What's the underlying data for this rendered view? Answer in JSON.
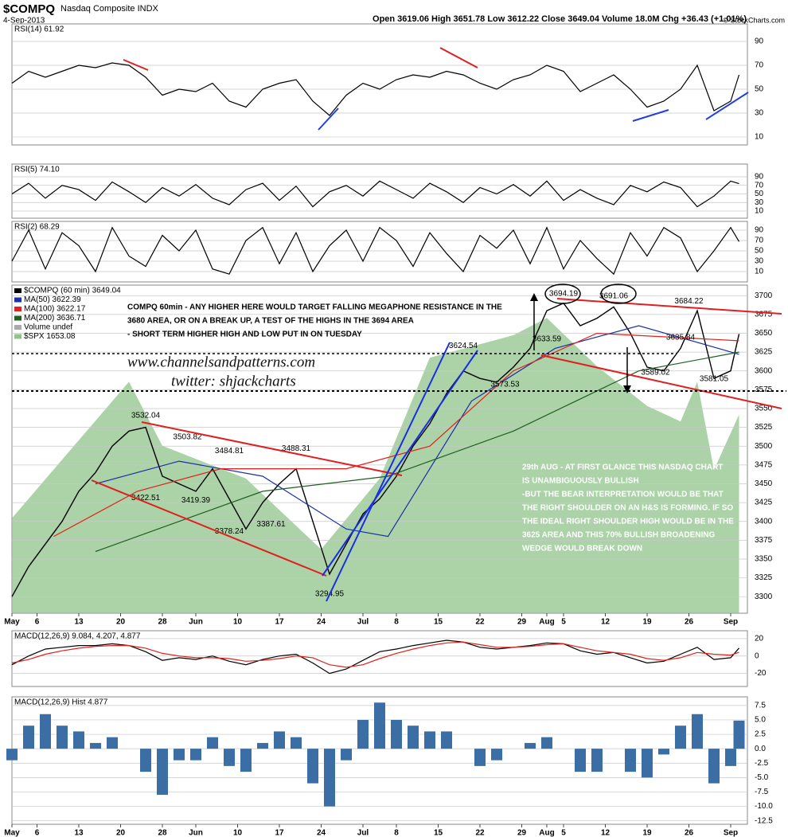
{
  "header": {
    "symbol": "$COMPQ",
    "name": "Nasdaq Composite INDX",
    "date": "4-Sep-2013",
    "quote": "Open 3619.06  High 3651.78  Low 3612.22  Close 3649.04  Volume 18.0M  Chg +36.43 (+1.01%)",
    "credit": "© StockCharts.com"
  },
  "watermark": [
    "www.channelsandpatterns.com",
    "twitter: shjackcharts"
  ],
  "chart_data": [
    {
      "type": "line",
      "x": [
        0,
        2,
        4,
        6,
        8,
        10,
        12,
        14,
        16,
        18,
        20,
        22,
        24,
        26,
        28,
        30,
        32,
        34,
        36,
        38,
        40,
        42,
        44,
        46,
        48,
        50,
        52,
        54,
        56,
        58,
        60,
        62,
        64,
        66,
        68,
        70,
        72,
        74,
        76,
        78,
        80,
        82,
        84,
        86,
        87
      ],
      "xlim": [
        0,
        88
      ],
      "ylim": [
        3278,
        3714
      ],
      "y2lim": [
        1540,
        1730
      ],
      "xticks": [
        {
          "value": 0,
          "label": "May"
        },
        {
          "value": 3,
          "label": "6"
        },
        {
          "value": 8,
          "label": "13"
        },
        {
          "value": 13,
          "label": "20"
        },
        {
          "value": 18,
          "label": "28"
        },
        {
          "value": 22,
          "label": "Jun"
        },
        {
          "value": 27,
          "label": "10"
        },
        {
          "value": 32,
          "label": "17"
        },
        {
          "value": 37,
          "label": "24"
        },
        {
          "value": 42,
          "label": "Jul"
        },
        {
          "value": 46,
          "label": "8"
        },
        {
          "value": 51,
          "label": "15"
        },
        {
          "value": 56,
          "label": "22"
        },
        {
          "value": 61,
          "label": "29"
        },
        {
          "value": 64,
          "label": "Aug"
        },
        {
          "value": 66,
          "label": "5"
        },
        {
          "value": 71,
          "label": "12"
        },
        {
          "value": 76,
          "label": "19"
        },
        {
          "value": 81,
          "label": "26"
        },
        {
          "value": 86,
          "label": "Sep"
        }
      ],
      "yticks": [
        3300,
        3325,
        3350,
        3375,
        3400,
        3425,
        3450,
        3475,
        3500,
        3525,
        3550,
        3575,
        3600,
        3625,
        3650,
        3675,
        3700
      ],
      "grid": true,
      "series": [
        {
          "name": "$COMPQ (60 min) 3649.04",
          "color": "#000000",
          "values": [
            3300,
            3340,
            3370,
            3400,
            3440,
            3465,
            3500,
            3520,
            3525,
            3460,
            3450,
            3440,
            3470,
            3430,
            3390,
            3425,
            3450,
            3470,
            3400,
            3330,
            3370,
            3410,
            3430,
            3460,
            3500,
            3530,
            3570,
            3600,
            3590,
            3585,
            3605,
            3630,
            3680,
            3690,
            3660,
            3670,
            3685,
            3650,
            3605,
            3600,
            3630,
            3680,
            3590,
            3600,
            3649
          ]
        },
        {
          "name": "MA(50) 3622.39",
          "color": "#1a2fa8",
          "x": [
            10,
            20,
            30,
            40,
            45,
            55,
            65,
            75,
            87
          ],
          "values": [
            3450,
            3480,
            3460,
            3390,
            3380,
            3560,
            3630,
            3660,
            3622
          ]
        },
        {
          "name": "MA(100) 3622.17",
          "color": "#e0201b",
          "x": [
            5,
            15,
            25,
            40,
            50,
            60,
            70,
            87
          ],
          "values": [
            3380,
            3440,
            3470,
            3470,
            3500,
            3600,
            3650,
            3640
          ]
        },
        {
          "name": "MA(200) 3636.71",
          "color": "#1f5e1f",
          "x": [
            10,
            30,
            45,
            60,
            75,
            87
          ],
          "values": [
            3360,
            3440,
            3460,
            3520,
            3600,
            3625
          ]
        },
        {
          "name": "$SPX 1653.08",
          "color": "#8fc48a",
          "axis": "y2",
          "area": true,
          "x": [
            0,
            14,
            18,
            28,
            37,
            44,
            50,
            60,
            64,
            70,
            76,
            80,
            82,
            84,
            87
          ],
          "values": [
            1595,
            1674,
            1637,
            1618,
            1577,
            1618,
            1688,
            1701,
            1711,
            1683,
            1660,
            1651,
            1674,
            1623,
            1655
          ]
        }
      ],
      "legend_notes": [
        "Volume undef"
      ],
      "point_labels": [
        {
          "x": 16,
          "value": 3532.04
        },
        {
          "x": 21,
          "value": 3503.82
        },
        {
          "x": 26,
          "value": 3484.81
        },
        {
          "x": 34,
          "value": 3488.31
        },
        {
          "x": 16,
          "value": 3422.51
        },
        {
          "x": 22,
          "value": 3419.39
        },
        {
          "x": 26,
          "value": 3378.24
        },
        {
          "x": 31,
          "value": 3387.61
        },
        {
          "x": 38,
          "value": 3294.95
        },
        {
          "x": 54,
          "value": 3624.54
        },
        {
          "x": 59,
          "value": 3573.53
        },
        {
          "x": 64,
          "value": 3633.59
        },
        {
          "x": 66,
          "value": 3694.19
        },
        {
          "x": 72,
          "value": 3691.06
        },
        {
          "x": 81,
          "value": 3684.22
        },
        {
          "x": 80,
          "value": 3635.84
        },
        {
          "x": 77,
          "value": 3589.02
        },
        {
          "x": 84,
          "value": 3581.05
        }
      ],
      "notes": [
        [
          "COMPQ 60min - ANY HIGHER HERE WOULD TARGET FALLING MEGAPHONE RESISTANCE IN THE",
          "3680 AREA, OR ON A BREAK UP, A TEST OF THE HIGHS IN THE 3694 AREA",
          "- SHORT TERM HIGHER HIGH AND LOW PUT IN ON TUESDAY"
        ],
        [
          "29th AUG - AT FIRST GLANCE THIS NASDAQ CHART",
          "IS UNAMBIGUOUSLY BULLISH",
          "-BUT THE BEAR INTERPRETATION WOULD BE THAT",
          "THE RIGHT SHOULDER ON AN H&S IS FORMING. IF SO",
          "THE IDEAL RIGHT SHOULDER HIGH WOULD BE IN THE",
          "3625 AREA AND THIS 70% BULLISH BROADENING",
          "WEDGE WOULD BREAK DOWN"
        ]
      ]
    },
    {
      "type": "line",
      "title": "RSI(14) 61.92",
      "x": [
        0,
        2,
        4,
        6,
        8,
        10,
        12,
        14,
        16,
        18,
        20,
        22,
        24,
        26,
        28,
        30,
        32,
        34,
        36,
        38,
        40,
        42,
        44,
        46,
        48,
        50,
        52,
        54,
        56,
        58,
        60,
        62,
        64,
        66,
        68,
        70,
        72,
        74,
        76,
        78,
        80,
        82,
        84,
        86,
        87
      ],
      "xlim": [
        0,
        88
      ],
      "ylim": [
        3.3,
        104.7
      ],
      "yticks": [
        10,
        30,
        50,
        70,
        90
      ],
      "grid": true,
      "series": [
        {
          "color": "#000000",
          "values": [
            55,
            65,
            60,
            65,
            70,
            68,
            72,
            70,
            60,
            45,
            50,
            48,
            55,
            40,
            35,
            50,
            55,
            58,
            40,
            28,
            45,
            55,
            50,
            58,
            62,
            60,
            65,
            62,
            55,
            50,
            58,
            62,
            70,
            65,
            48,
            55,
            62,
            50,
            35,
            40,
            50,
            70,
            32,
            40,
            62
          ]
        }
      ]
    },
    {
      "type": "line",
      "title": "RSI(5) 74.10",
      "x": [
        0,
        2,
        4,
        6,
        8,
        10,
        12,
        14,
        16,
        18,
        20,
        22,
        24,
        26,
        28,
        30,
        32,
        34,
        36,
        38,
        40,
        42,
        44,
        46,
        48,
        50,
        52,
        54,
        56,
        58,
        60,
        62,
        64,
        66,
        68,
        70,
        72,
        74,
        76,
        78,
        80,
        82,
        84,
        86,
        87
      ],
      "xlim": [
        0,
        88
      ],
      "ylim": [
        -6.7,
        119.8
      ],
      "yticks": [
        10,
        30,
        50,
        70,
        90
      ],
      "grid": true,
      "series": [
        {
          "color": "#000000",
          "values": [
            50,
            75,
            40,
            70,
            60,
            35,
            78,
            55,
            30,
            65,
            45,
            72,
            40,
            25,
            60,
            75,
            35,
            68,
            20,
            55,
            70,
            45,
            80,
            60,
            40,
            75,
            55,
            30,
            65,
            50,
            72,
            45,
            80,
            35,
            60,
            40,
            25,
            70,
            55,
            78,
            65,
            20,
            45,
            80,
            74
          ]
        }
      ]
    },
    {
      "type": "line",
      "title": "RSI(2) 68.29",
      "x": [
        0,
        2,
        4,
        6,
        8,
        10,
        12,
        14,
        16,
        18,
        20,
        22,
        24,
        26,
        28,
        30,
        32,
        34,
        36,
        38,
        40,
        42,
        44,
        46,
        48,
        50,
        52,
        54,
        56,
        58,
        60,
        62,
        64,
        66,
        68,
        70,
        72,
        74,
        76,
        78,
        80,
        82,
        84,
        86,
        87
      ],
      "xlim": [
        0,
        88
      ],
      "ylim": [
        -10,
        106.9
      ],
      "yticks": [
        10,
        30,
        50,
        70,
        90
      ],
      "grid": true,
      "series": [
        {
          "color": "#000000",
          "values": [
            30,
            90,
            15,
            85,
            60,
            10,
            95,
            40,
            20,
            80,
            50,
            90,
            15,
            5,
            70,
            95,
            25,
            85,
            10,
            60,
            90,
            30,
            95,
            70,
            20,
            85,
            45,
            10,
            80,
            55,
            90,
            25,
            95,
            15,
            70,
            35,
            5,
            85,
            40,
            95,
            75,
            10,
            50,
            95,
            68
          ]
        }
      ]
    },
    {
      "type": "line",
      "title": "MACD(12,26,9) 9.084, 4.207, 4.877",
      "x": [
        0,
        2,
        4,
        6,
        8,
        10,
        12,
        14,
        16,
        18,
        20,
        22,
        24,
        26,
        28,
        30,
        32,
        34,
        36,
        38,
        40,
        42,
        44,
        46,
        48,
        50,
        52,
        54,
        56,
        58,
        60,
        62,
        64,
        66,
        68,
        70,
        72,
        74,
        76,
        78,
        80,
        82,
        84,
        86,
        87
      ],
      "xlim": [
        0,
        88
      ],
      "ylim": [
        -35,
        29
      ],
      "yticks": [
        -20,
        0,
        20
      ],
      "grid": true,
      "series": [
        {
          "color": "#000000",
          "values": [
            -10,
            0,
            8,
            10,
            12,
            12,
            14,
            12,
            5,
            -5,
            -2,
            -4,
            0,
            -6,
            -10,
            -4,
            0,
            2,
            -8,
            -20,
            -15,
            -5,
            5,
            8,
            12,
            15,
            18,
            16,
            10,
            8,
            10,
            12,
            15,
            14,
            6,
            2,
            4,
            -2,
            -8,
            -6,
            2,
            10,
            -4,
            -2,
            9.084
          ]
        },
        {
          "color": "#e0201b",
          "values": [
            -8,
            -4,
            2,
            6,
            9,
            11,
            12,
            12,
            9,
            3,
            0,
            -2,
            -2,
            -3,
            -6,
            -5,
            -3,
            0,
            -2,
            -10,
            -13,
            -10,
            -3,
            3,
            8,
            12,
            15,
            16,
            13,
            10,
            10,
            11,
            13,
            14,
            10,
            6,
            4,
            2,
            -3,
            -5,
            -2,
            4,
            2,
            1,
            4.207
          ]
        }
      ]
    },
    {
      "type": "bar",
      "title": "MACD(12,26,9) Hist 4.877",
      "x": [
        0,
        2,
        4,
        6,
        8,
        10,
        12,
        14,
        16,
        18,
        20,
        22,
        24,
        26,
        28,
        30,
        32,
        34,
        36,
        38,
        40,
        42,
        44,
        46,
        48,
        50,
        52,
        54,
        56,
        58,
        60,
        62,
        64,
        66,
        68,
        70,
        72,
        74,
        76,
        78,
        80,
        82,
        84,
        86,
        87
      ],
      "xlim": [
        0,
        88
      ],
      "ylim": [
        -13.1,
        9
      ],
      "xticks": [
        {
          "value": 0,
          "label": "May"
        },
        {
          "value": 3,
          "label": "6"
        },
        {
          "value": 8,
          "label": "13"
        },
        {
          "value": 13,
          "label": "20"
        },
        {
          "value": 18,
          "label": "28"
        },
        {
          "value": 22,
          "label": "Jun"
        },
        {
          "value": 27,
          "label": "10"
        },
        {
          "value": 32,
          "label": "17"
        },
        {
          "value": 37,
          "label": "24"
        },
        {
          "value": 42,
          "label": "Jul"
        },
        {
          "value": 46,
          "label": "8"
        },
        {
          "value": 51,
          "label": "15"
        },
        {
          "value": 56,
          "label": "22"
        },
        {
          "value": 61,
          "label": "29"
        },
        {
          "value": 64,
          "label": "Aug"
        },
        {
          "value": 66,
          "label": "5"
        },
        {
          "value": 71,
          "label": "12"
        },
        {
          "value": 76,
          "label": "19"
        },
        {
          "value": 81,
          "label": "26"
        },
        {
          "value": 86,
          "label": "Sep"
        }
      ],
      "yticks": [
        7.5,
        {
          "value": 5,
          "label": "5.0"
        },
        2.5,
        {
          "value": 0,
          "label": "0.0"
        },
        -2.5,
        {
          "value": -5,
          "label": "-5.0"
        },
        -7.5,
        {
          "value": -10,
          "label": "-10.0"
        },
        -12.5
      ],
      "grid": true,
      "series": [
        {
          "color": "#3a6ea5",
          "values": [
            -2,
            4,
            6,
            4,
            3,
            1,
            2,
            0,
            -4,
            -8,
            -2,
            -2,
            2,
            -3,
            -4,
            1,
            3,
            2,
            -6,
            -10,
            -2,
            5,
            8,
            5,
            4,
            3,
            3,
            0,
            -3,
            -2,
            0,
            1,
            2,
            0,
            -4,
            -4,
            0,
            -4,
            -5,
            -1,
            4,
            6,
            -6,
            -3,
            4.877
          ]
        }
      ]
    }
  ]
}
